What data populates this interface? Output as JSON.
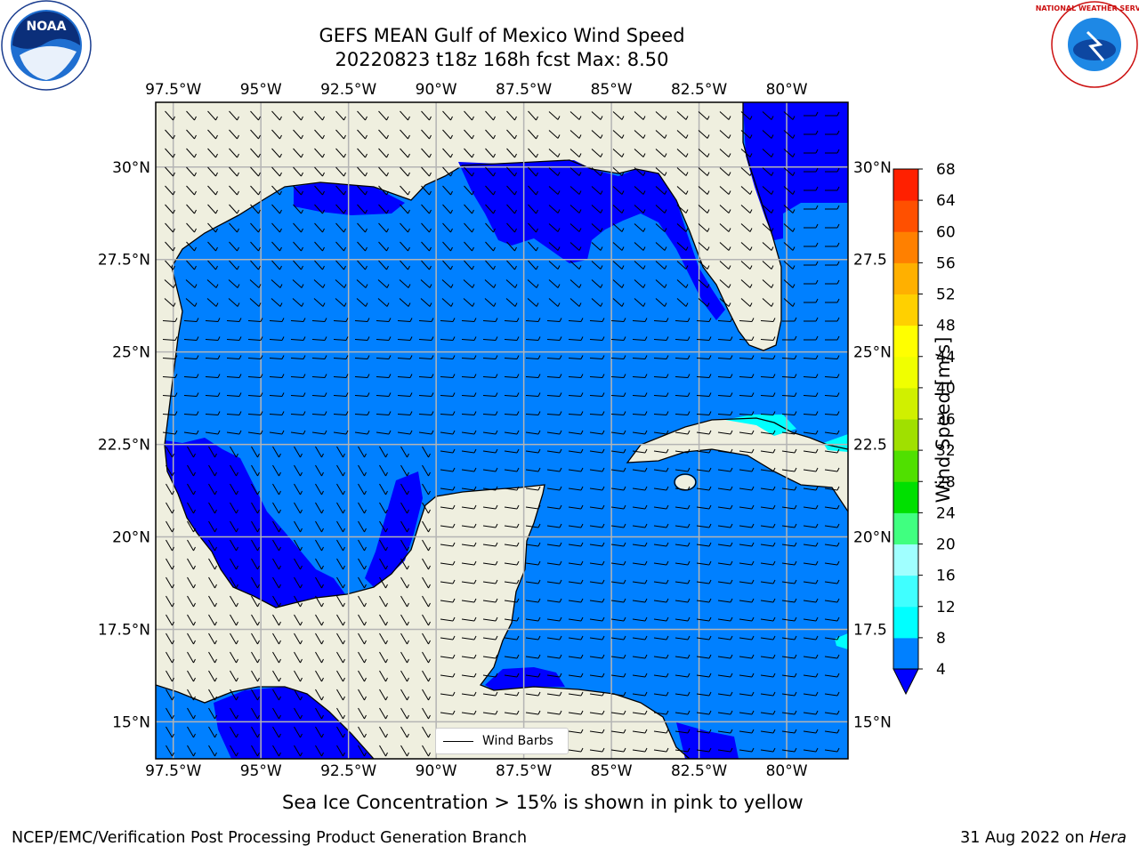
{
  "title": {
    "line1": "GEFS MEAN Gulf of Mexico Wind Speed",
    "line2": "20220823 t18z 168h fcst   Max: 8.50"
  },
  "axes": {
    "lon_labels": [
      "97.5°W",
      "95°W",
      "92.5°W",
      "90°W",
      "87.5°W",
      "85°W",
      "82.5°W",
      "80°W"
    ],
    "lat_labels": [
      "30°N",
      "27.5°N",
      "25°N",
      "22.5°N",
      "20°N",
      "17.5°N",
      "15°N"
    ],
    "right_lat_labels": [
      "30°N",
      "27.5",
      "25°N",
      "22.5",
      "20°N",
      "17.5",
      "15°N"
    ],
    "lon_values": [
      -97.5,
      -95,
      -92.5,
      -90,
      -87.5,
      -85,
      -82.5,
      -80
    ],
    "lat_values": [
      30,
      27.5,
      25,
      22.5,
      20,
      17.5,
      15
    ]
  },
  "legend": {
    "label": "Wind Barbs"
  },
  "colorbar": {
    "label": "Wind Speed [m/s]",
    "ticks": [
      "4",
      "8",
      "12",
      "16",
      "20",
      "24",
      "28",
      "32",
      "36",
      "40",
      "44",
      "48",
      "52",
      "56",
      "60",
      "64",
      "68"
    ],
    "colors": [
      "#0080ff",
      "#00ffff",
      "#40ffff",
      "#a0ffff",
      "#40ff80",
      "#00e000",
      "#50e000",
      "#a0e000",
      "#d0f000",
      "#f0ff00",
      "#ffff00",
      "#ffd000",
      "#ffb000",
      "#ff8000",
      "#ff5000",
      "#ff2000"
    ],
    "under_color": "#0000ff"
  },
  "colors": {
    "land": "#efefdf",
    "wind_4_8": "#0080ff",
    "wind_under_4": "#0000ff",
    "wind_8_12": "#00ffff",
    "grid": "#b4b4b4"
  },
  "caption": "Sea Ice Concentration > 15% is shown in pink to yellow",
  "footer": {
    "left": "NCEP/EMC/Verification Post Processing Product Generation Branch",
    "right_date": "31 Aug 2022 on ",
    "right_host": "Hera"
  },
  "logos": {
    "left": "NOAA",
    "right": "NATIONAL WEATHER SERVICE"
  }
}
